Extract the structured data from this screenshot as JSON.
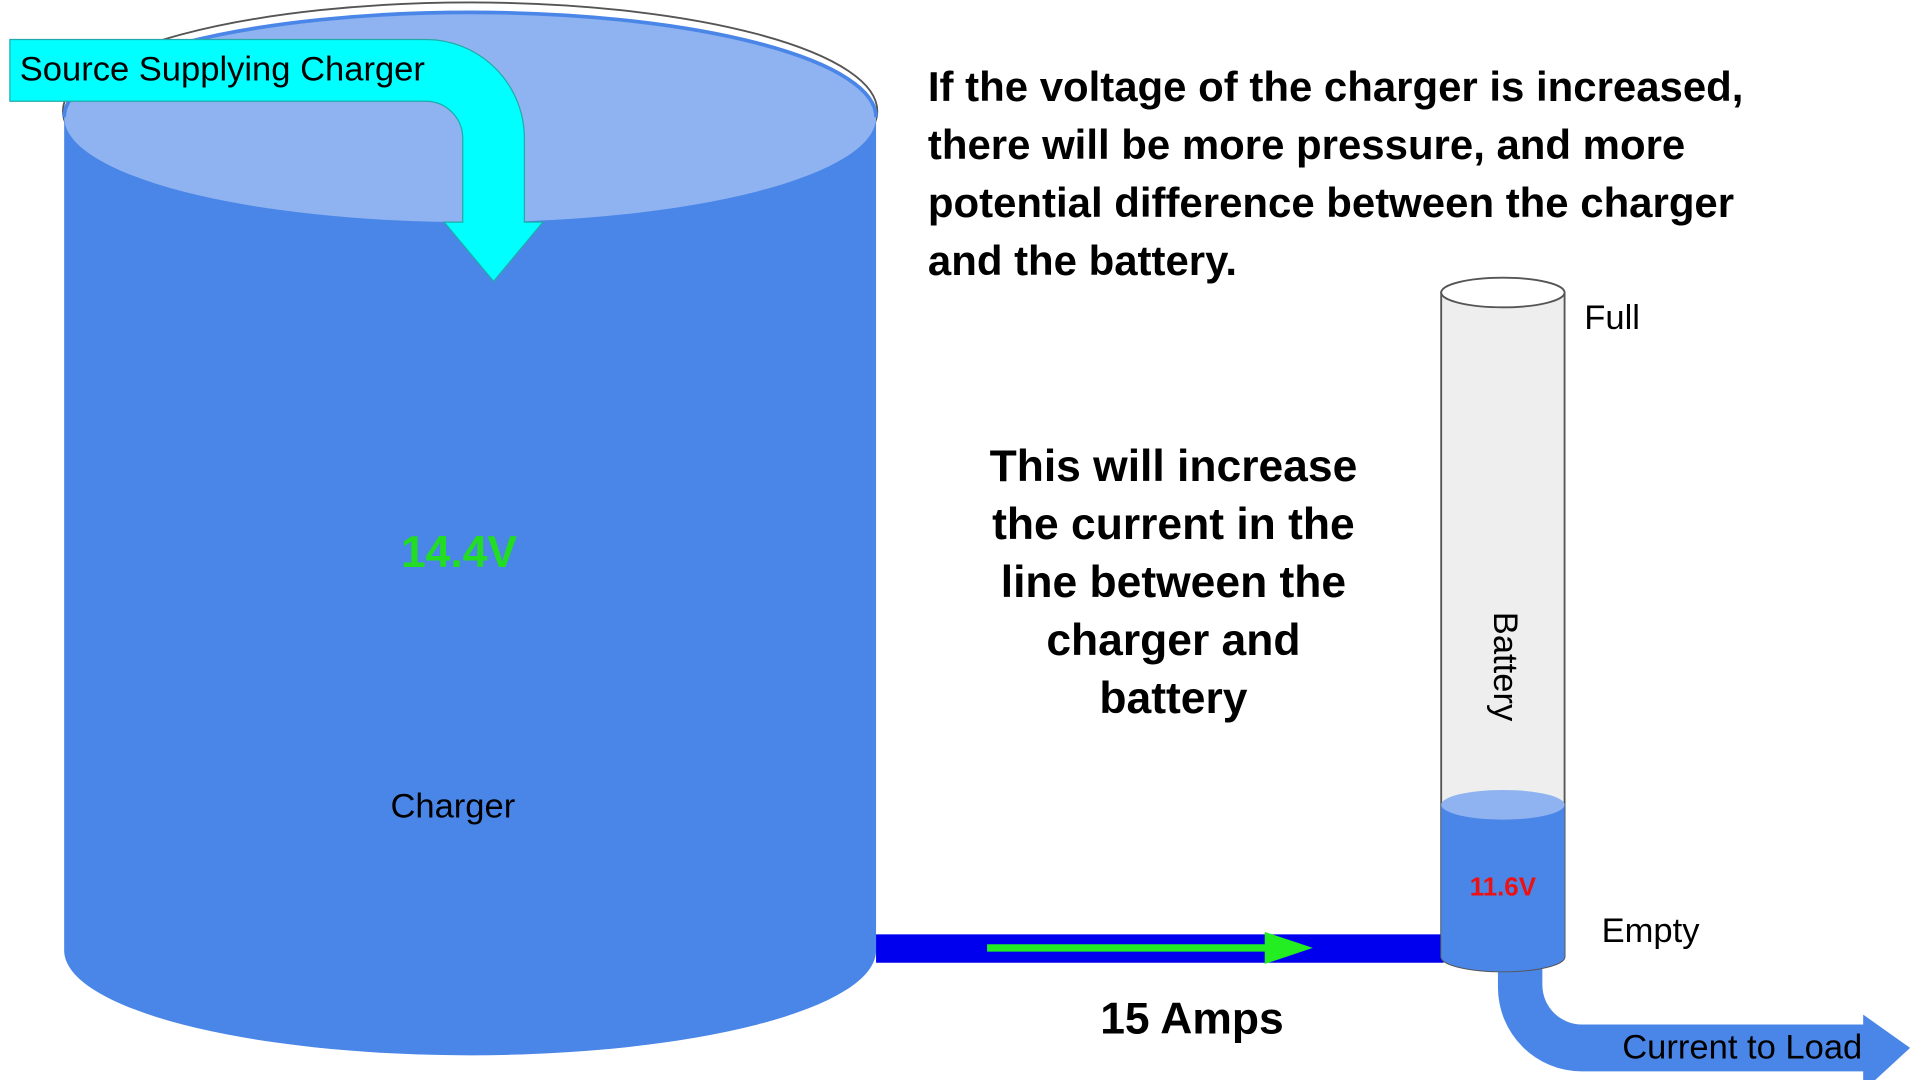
{
  "source_label": "Source Supplying Charger",
  "charger": {
    "voltage": "14.4V",
    "label": "Charger"
  },
  "explanation_top": [
    "If the voltage of the charger is increased,",
    "there will be more pressure, and more",
    "potential difference between the charger",
    "and the battery."
  ],
  "explanation_middle": [
    "This will increase",
    "the current in the",
    "line between the",
    "charger and",
    "battery"
  ],
  "line_current": "15 Amps",
  "battery": {
    "label": "Battery",
    "voltage": "11.6V",
    "full": "Full",
    "empty": "Empty"
  },
  "load_label": "Current to Load"
}
